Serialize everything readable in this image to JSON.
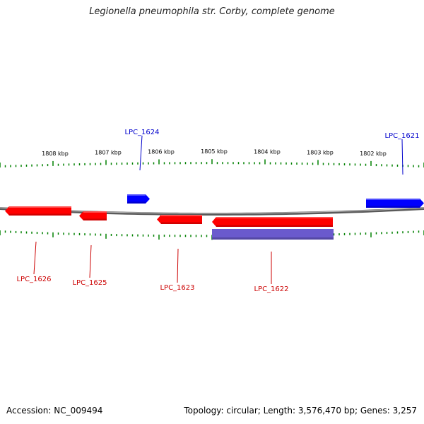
{
  "title": "Legionella pneumophila str. Corby, complete genome",
  "footer": {
    "accession": "Accession: NC_009494",
    "info": "Topology: circular; Length: 3,576,470 bp; Genes: 3,257"
  },
  "colors": {
    "forward_gene": "#0000ff",
    "reverse_gene": "#ff0000",
    "rna_feature": "#6a5acd",
    "backbone": "#808080",
    "ticks": "#008000"
  },
  "ruler": {
    "unit": "kbp",
    "labels": [
      {
        "text": "1808 kbp",
        "kbp": 1808
      },
      {
        "text": "1807 kbp",
        "kbp": 1807
      },
      {
        "text": "1806 kbp",
        "kbp": 1806
      },
      {
        "text": "1805 kbp",
        "kbp": 1805
      },
      {
        "text": "1804 kbp",
        "kbp": 1804
      },
      {
        "text": "1803 kbp",
        "kbp": 1803
      },
      {
        "text": "1802 kbp",
        "kbp": 1802
      }
    ]
  },
  "genes": [
    {
      "label": "LPC_1624",
      "strand": "forward",
      "type": "gene"
    },
    {
      "label": "LPC_1621",
      "strand": "forward",
      "type": "gene"
    },
    {
      "label": "LPC_1626",
      "strand": "reverse",
      "type": "gene"
    },
    {
      "label": "LPC_1625",
      "strand": "reverse",
      "type": "gene"
    },
    {
      "label": "LPC_1623",
      "strand": "reverse",
      "type": "gene"
    },
    {
      "label": "LPC_1622",
      "strand": "reverse",
      "type": "gene"
    },
    {
      "label": "",
      "strand": "reverse",
      "type": "rna"
    }
  ]
}
